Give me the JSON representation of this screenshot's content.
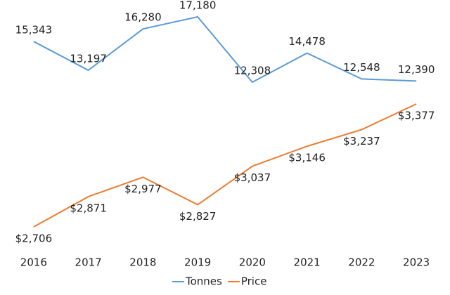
{
  "chart_data": {
    "type": "line",
    "categories": [
      "2016",
      "2017",
      "2018",
      "2019",
      "2020",
      "2021",
      "2022",
      "2023"
    ],
    "series": [
      {
        "name": "Tonnes",
        "color": "#5b9bd5",
        "values": [
          15343,
          13197,
          16280,
          17180,
          12308,
          14478,
          12548,
          12390
        ],
        "value_labels": [
          "15,343",
          "13,197",
          "16,280",
          "17,180",
          "12,308",
          "14,478",
          "12,548",
          "12,390"
        ]
      },
      {
        "name": "Price",
        "color": "#ed7d31",
        "axis": "y2",
        "values": [
          2706,
          2871,
          2977,
          2827,
          3037,
          3146,
          3237,
          3377
        ],
        "value_labels": [
          "$2,706",
          "$2,871",
          "$2,977",
          "$2,827",
          "$3,037",
          "$3,146",
          "$3,237",
          "$3,377"
        ]
      }
    ],
    "legend": "bottom"
  }
}
